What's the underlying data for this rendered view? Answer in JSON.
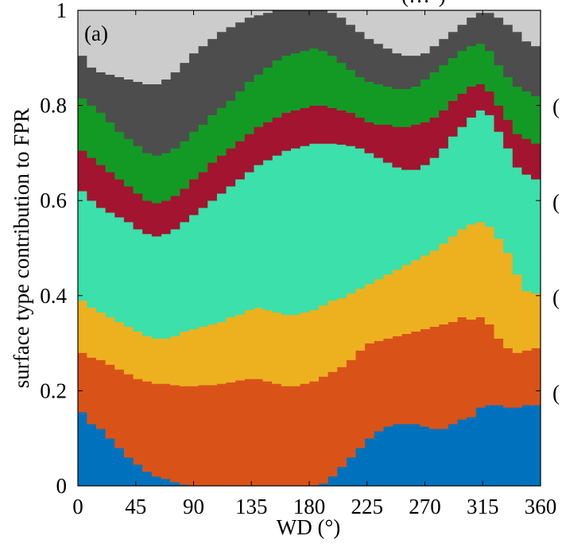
{
  "chart_data": {
    "type": "area",
    "title": "",
    "panel_label": "(a)",
    "xlabel": "WD (°)",
    "ylabel": "surface type contribution to FPR",
    "xlim": [
      0,
      360
    ],
    "ylim": [
      0,
      1
    ],
    "xticks": [
      0,
      45,
      90,
      135,
      180,
      225,
      270,
      315,
      360
    ],
    "yticks": [
      0,
      0.2,
      0.4,
      0.6,
      0.8,
      1
    ],
    "ytick_labels": [
      "0",
      "0.2",
      "0.4",
      "0.6",
      "0.8",
      "1"
    ],
    "grid": false,
    "stacked": true,
    "step": true,
    "bin_width": 7.2,
    "clipped_text": [
      "(",
      "(",
      "(",
      "("
    ],
    "clipped_title": "(…°)",
    "series_colors": [
      "#0072BD",
      "#D95319",
      "#EDB120",
      "#3BE0AA",
      "#A2142F",
      "#139A25",
      "#4D4D4D",
      "#CCCCCC"
    ],
    "x": [
      0,
      7.2,
      14.4,
      21.6,
      28.8,
      36,
      43.2,
      50.4,
      57.6,
      64.8,
      72,
      79.2,
      86.4,
      93.6,
      100.8,
      108,
      115.2,
      122.4,
      129.6,
      136.8,
      144,
      151.2,
      158.4,
      165.6,
      172.8,
      180,
      187.2,
      194.4,
      201.6,
      208.8,
      216,
      223.2,
      230.4,
      237.6,
      244.8,
      252,
      259.2,
      266.4,
      273.6,
      280.8,
      288,
      295.2,
      302.4,
      309.6,
      316.8,
      324,
      331.2,
      338.4,
      345.6,
      352.8
    ],
    "boundaries": [
      [
        0.155,
        0.13,
        0.12,
        0.1,
        0.08,
        0.06,
        0.045,
        0.03,
        0.02,
        0.015,
        0.008,
        0.003,
        0.001,
        0,
        0,
        0,
        0,
        0,
        0,
        0,
        0,
        0,
        0,
        0,
        0,
        0,
        0.005,
        0.02,
        0.04,
        0.06,
        0.08,
        0.1,
        0.115,
        0.125,
        0.13,
        0.13,
        0.13,
        0.125,
        0.12,
        0.12,
        0.13,
        0.14,
        0.145,
        0.165,
        0.17,
        0.17,
        0.165,
        0.165,
        0.17,
        0.17
      ],
      [
        0.28,
        0.27,
        0.265,
        0.255,
        0.245,
        0.235,
        0.225,
        0.22,
        0.215,
        0.215,
        0.212,
        0.21,
        0.21,
        0.212,
        0.212,
        0.215,
        0.218,
        0.222,
        0.225,
        0.225,
        0.22,
        0.215,
        0.21,
        0.21,
        0.215,
        0.22,
        0.23,
        0.24,
        0.25,
        0.265,
        0.285,
        0.3,
        0.305,
        0.31,
        0.315,
        0.32,
        0.325,
        0.33,
        0.335,
        0.34,
        0.345,
        0.355,
        0.35,
        0.355,
        0.34,
        0.31,
        0.29,
        0.28,
        0.285,
        0.29
      ],
      [
        0.39,
        0.375,
        0.365,
        0.355,
        0.345,
        0.335,
        0.325,
        0.315,
        0.31,
        0.31,
        0.315,
        0.325,
        0.33,
        0.335,
        0.34,
        0.345,
        0.355,
        0.36,
        0.37,
        0.375,
        0.37,
        0.365,
        0.36,
        0.36,
        0.365,
        0.37,
        0.38,
        0.39,
        0.395,
        0.405,
        0.415,
        0.425,
        0.435,
        0.445,
        0.455,
        0.465,
        0.475,
        0.485,
        0.495,
        0.51,
        0.525,
        0.54,
        0.55,
        0.555,
        0.545,
        0.52,
        0.49,
        0.445,
        0.41,
        0.405
      ],
      [
        0.62,
        0.6,
        0.585,
        0.575,
        0.565,
        0.555,
        0.54,
        0.53,
        0.525,
        0.53,
        0.54,
        0.555,
        0.57,
        0.585,
        0.6,
        0.615,
        0.63,
        0.645,
        0.66,
        0.675,
        0.685,
        0.695,
        0.705,
        0.71,
        0.715,
        0.72,
        0.72,
        0.72,
        0.718,
        0.715,
        0.71,
        0.7,
        0.69,
        0.68,
        0.67,
        0.665,
        0.665,
        0.675,
        0.69,
        0.71,
        0.735,
        0.755,
        0.775,
        0.79,
        0.78,
        0.745,
        0.71,
        0.67,
        0.655,
        0.645
      ],
      [
        0.705,
        0.69,
        0.675,
        0.66,
        0.645,
        0.63,
        0.615,
        0.6,
        0.595,
        0.6,
        0.61,
        0.625,
        0.645,
        0.66,
        0.68,
        0.695,
        0.71,
        0.725,
        0.74,
        0.755,
        0.765,
        0.775,
        0.785,
        0.79,
        0.795,
        0.8,
        0.8,
        0.795,
        0.79,
        0.785,
        0.775,
        0.765,
        0.76,
        0.76,
        0.755,
        0.755,
        0.76,
        0.765,
        0.775,
        0.79,
        0.81,
        0.825,
        0.84,
        0.845,
        0.83,
        0.8,
        0.77,
        0.74,
        0.73,
        0.72
      ],
      [
        0.815,
        0.8,
        0.785,
        0.765,
        0.745,
        0.73,
        0.715,
        0.7,
        0.695,
        0.7,
        0.71,
        0.725,
        0.745,
        0.76,
        0.78,
        0.795,
        0.81,
        0.83,
        0.85,
        0.865,
        0.88,
        0.895,
        0.905,
        0.91,
        0.915,
        0.92,
        0.915,
        0.905,
        0.89,
        0.875,
        0.86,
        0.85,
        0.845,
        0.84,
        0.835,
        0.835,
        0.84,
        0.855,
        0.87,
        0.885,
        0.9,
        0.915,
        0.925,
        0.93,
        0.915,
        0.885,
        0.86,
        0.84,
        0.83,
        0.82
      ],
      [
        0.905,
        0.88,
        0.87,
        0.865,
        0.86,
        0.855,
        0.85,
        0.845,
        0.845,
        0.855,
        0.87,
        0.89,
        0.91,
        0.925,
        0.94,
        0.955,
        0.965,
        0.975,
        0.985,
        0.99,
        0.995,
        1.0,
        1.0,
        1.0,
        1.0,
        1.0,
        1.0,
        0.995,
        0.985,
        0.97,
        0.955,
        0.94,
        0.93,
        0.92,
        0.91,
        0.905,
        0.905,
        0.91,
        0.925,
        0.94,
        0.955,
        0.97,
        0.985,
        0.995,
        0.995,
        0.985,
        0.97,
        0.955,
        0.935,
        0.925
      ],
      [
        1,
        1,
        1,
        1,
        1,
        1,
        1,
        1,
        1,
        1,
        1,
        1,
        1,
        1,
        1,
        1,
        1,
        1,
        1,
        1,
        1,
        1,
        1,
        1,
        1,
        1,
        1,
        1,
        1,
        1,
        1,
        1,
        1,
        1,
        1,
        1,
        1,
        1,
        1,
        1,
        1,
        1,
        1,
        1,
        1,
        1,
        1,
        1,
        1,
        1
      ]
    ]
  }
}
